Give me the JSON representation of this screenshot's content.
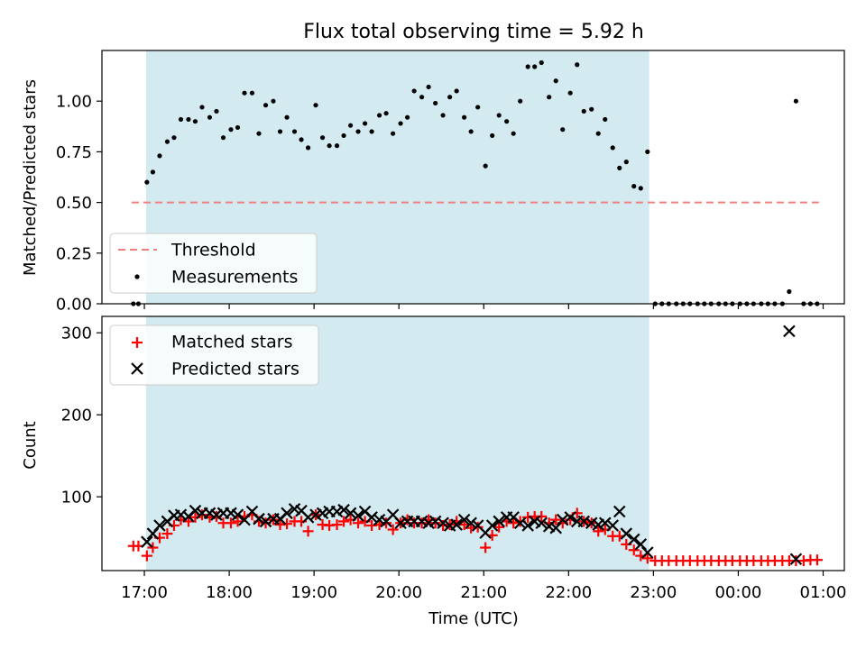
{
  "chart_data": [
    {
      "type": "scatter",
      "title": "Flux total observing time = 5.92 h",
      "xlabel": "",
      "ylabel": "Matched/Predicted stars",
      "xlim": [
        16.5,
        25.25
      ],
      "ylim": [
        0.0,
        1.25
      ],
      "yticks": [
        0.0,
        0.25,
        0.5,
        0.75,
        1.0
      ],
      "ytick_labels": [
        "0.00",
        "0.25",
        "0.50",
        "0.75",
        "1.00"
      ],
      "shaded_span": [
        17.02,
        22.95
      ],
      "shaded_color": "#d3eaf1",
      "legend": {
        "location": "lower-left",
        "entries": [
          "Threshold",
          "Measurements"
        ]
      },
      "threshold": {
        "name": "Threshold",
        "y": 0.5,
        "x_range": [
          16.85,
          24.95
        ],
        "color": "#f08080",
        "style": "dashed"
      },
      "series": [
        {
          "name": "Measurements",
          "color": "#000000",
          "marker": "dot",
          "x": [
            16.87,
            16.93,
            17.03,
            17.1,
            17.18,
            17.27,
            17.35,
            17.43,
            17.52,
            17.6,
            17.68,
            17.77,
            17.85,
            17.93,
            18.02,
            18.1,
            18.18,
            18.27,
            18.35,
            18.43,
            18.52,
            18.6,
            18.68,
            18.77,
            18.85,
            18.93,
            19.02,
            19.1,
            19.18,
            19.27,
            19.35,
            19.43,
            19.52,
            19.6,
            19.68,
            19.77,
            19.85,
            19.93,
            20.02,
            20.1,
            20.18,
            20.27,
            20.35,
            20.43,
            20.52,
            20.6,
            20.68,
            20.77,
            20.85,
            20.93,
            21.02,
            21.1,
            21.18,
            21.27,
            21.35,
            21.43,
            21.52,
            21.6,
            21.68,
            21.77,
            21.85,
            21.93,
            22.02,
            22.1,
            22.18,
            22.27,
            22.35,
            22.43,
            22.52,
            22.6,
            22.68,
            22.77,
            22.85,
            22.93,
            23.02,
            23.1,
            23.18,
            23.27,
            23.35,
            23.43,
            23.52,
            23.6,
            23.68,
            23.77,
            23.85,
            23.93,
            24.02,
            24.1,
            24.18,
            24.27,
            24.35,
            24.43,
            24.52,
            24.6,
            24.68,
            24.77,
            24.85,
            24.93
          ],
          "y": [
            0.0,
            0.0,
            0.6,
            0.65,
            0.73,
            0.8,
            0.82,
            0.91,
            0.91,
            0.9,
            0.97,
            0.92,
            0.95,
            0.82,
            0.86,
            0.87,
            1.04,
            1.04,
            0.84,
            0.98,
            1.0,
            0.85,
            0.92,
            0.85,
            0.81,
            0.77,
            0.98,
            0.82,
            0.78,
            0.78,
            0.83,
            0.88,
            0.85,
            0.89,
            0.85,
            0.93,
            0.94,
            0.84,
            0.89,
            0.92,
            1.05,
            1.02,
            1.07,
            0.99,
            0.93,
            1.02,
            1.05,
            0.92,
            0.85,
            0.97,
            0.68,
            0.83,
            0.93,
            0.9,
            0.84,
            1.0,
            1.17,
            1.17,
            1.19,
            1.02,
            1.1,
            0.86,
            1.04,
            1.18,
            0.95,
            0.96,
            0.84,
            0.91,
            0.77,
            0.67,
            0.7,
            0.58,
            0.57,
            0.75,
            0.0,
            0.0,
            0.0,
            0.0,
            0.0,
            0.0,
            0.0,
            0.0,
            0.0,
            0.0,
            0.0,
            0.0,
            0.0,
            0.0,
            0.0,
            0.0,
            0.0,
            0.0,
            0.0,
            0.06,
            1.0,
            0.0,
            0.0,
            0.0
          ]
        }
      ]
    },
    {
      "type": "scatter",
      "title": "",
      "xlabel": "Time (UTC)",
      "ylabel": "Count",
      "xlim": [
        16.5,
        25.25
      ],
      "ylim": [
        10,
        320
      ],
      "yticks": [
        100,
        200,
        300
      ],
      "ytick_labels": [
        "100",
        "200",
        "300"
      ],
      "xticks": [
        17,
        18,
        19,
        20,
        21,
        22,
        23,
        24,
        25
      ],
      "xtick_labels": [
        "17:00",
        "18:00",
        "19:00",
        "20:00",
        "21:00",
        "22:00",
        "23:00",
        "00:00",
        "01:00"
      ],
      "shaded_span": [
        17.02,
        22.95
      ],
      "shaded_color": "#d3eaf1",
      "legend": {
        "location": "upper-left",
        "entries": [
          "Matched stars",
          "Predicted stars"
        ]
      },
      "series": [
        {
          "name": "Matched stars",
          "color": "#ff0000",
          "marker": "plus",
          "x": [
            16.87,
            16.93,
            17.03,
            17.1,
            17.18,
            17.27,
            17.35,
            17.43,
            17.52,
            17.6,
            17.68,
            17.77,
            17.85,
            17.93,
            18.02,
            18.1,
            18.18,
            18.27,
            18.35,
            18.43,
            18.52,
            18.6,
            18.68,
            18.77,
            18.85,
            18.93,
            19.02,
            19.1,
            19.18,
            19.27,
            19.35,
            19.43,
            19.52,
            19.6,
            19.68,
            19.77,
            19.85,
            19.93,
            20.02,
            20.1,
            20.18,
            20.27,
            20.35,
            20.43,
            20.52,
            20.6,
            20.68,
            20.77,
            20.85,
            20.93,
            21.02,
            21.1,
            21.18,
            21.27,
            21.35,
            21.43,
            21.52,
            21.6,
            21.68,
            21.77,
            21.85,
            21.93,
            22.02,
            22.1,
            22.18,
            22.27,
            22.35,
            22.43,
            22.52,
            22.6,
            22.68,
            22.77,
            22.85,
            22.93,
            23.02,
            23.1,
            23.18,
            23.27,
            23.35,
            23.43,
            23.52,
            23.6,
            23.68,
            23.77,
            23.85,
            23.93,
            24.02,
            24.1,
            24.18,
            24.27,
            24.35,
            24.43,
            24.52,
            24.6,
            24.68,
            24.77,
            24.85,
            24.93
          ],
          "y": [
            40,
            40,
            28,
            38,
            50,
            55,
            65,
            72,
            70,
            75,
            78,
            75,
            76,
            68,
            68,
            70,
            76,
            78,
            70,
            68,
            72,
            66,
            67,
            70,
            70,
            58,
            78,
            66,
            65,
            66,
            70,
            72,
            68,
            70,
            65,
            66,
            68,
            60,
            68,
            72,
            68,
            68,
            72,
            68,
            65,
            66,
            70,
            66,
            62,
            63,
            38,
            53,
            63,
            70,
            68,
            70,
            75,
            76,
            76,
            68,
            72,
            68,
            72,
            80,
            70,
            68,
            58,
            60,
            52,
            52,
            42,
            35,
            28,
            25,
            22,
            22,
            22,
            22,
            22,
            22,
            22,
            22,
            22,
            22,
            22,
            22,
            22,
            22,
            22,
            22,
            22,
            22,
            22,
            22,
            22,
            22,
            23,
            23
          ]
        },
        {
          "name": "Predicted stars",
          "color": "#000000",
          "marker": "x",
          "x": [
            17.03,
            17.1,
            17.18,
            17.27,
            17.35,
            17.43,
            17.52,
            17.6,
            17.68,
            17.77,
            17.85,
            17.93,
            18.02,
            18.1,
            18.18,
            18.27,
            18.35,
            18.43,
            18.52,
            18.6,
            18.68,
            18.77,
            18.85,
            18.93,
            19.02,
            19.1,
            19.18,
            19.27,
            19.35,
            19.43,
            19.52,
            19.6,
            19.68,
            19.77,
            19.85,
            19.93,
            20.02,
            20.1,
            20.18,
            20.27,
            20.35,
            20.43,
            20.52,
            20.6,
            20.68,
            20.77,
            20.85,
            20.93,
            21.02,
            21.1,
            21.18,
            21.27,
            21.35,
            21.43,
            21.52,
            21.6,
            21.68,
            21.77,
            21.85,
            21.93,
            22.02,
            22.1,
            22.18,
            22.27,
            22.35,
            22.43,
            22.52,
            22.6,
            22.68,
            22.77,
            22.85,
            22.93,
            24.6,
            24.68
          ],
          "y": [
            45,
            55,
            65,
            70,
            77,
            78,
            76,
            83,
            80,
            80,
            78,
            80,
            80,
            78,
            72,
            82,
            73,
            70,
            73,
            73,
            80,
            85,
            83,
            75,
            78,
            80,
            82,
            82,
            84,
            80,
            77,
            82,
            75,
            72,
            70,
            78,
            68,
            70,
            70,
            70,
            68,
            70,
            68,
            65,
            66,
            72,
            68,
            65,
            56,
            65,
            70,
            75,
            75,
            68,
            65,
            70,
            68,
            64,
            62,
            72,
            75,
            70,
            70,
            68,
            66,
            68,
            65,
            82,
            55,
            48,
            42,
            32,
            302,
            24
          ]
        }
      ]
    }
  ]
}
